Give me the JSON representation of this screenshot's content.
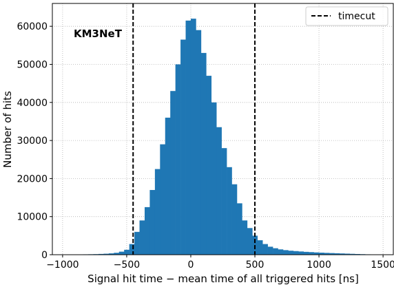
{
  "chart_data": {
    "type": "bar",
    "title": "",
    "xlabel": "Signal hit time − mean time of all triggered hits [ns]",
    "ylabel": "Number of hits",
    "xlim": [
      -1080,
      1580
    ],
    "ylim": [
      0,
      66000
    ],
    "xticks": [
      -1000,
      -500,
      0,
      500,
      1000,
      1500
    ],
    "yticks": [
      0,
      10000,
      20000,
      30000,
      40000,
      50000,
      60000
    ],
    "grid": true,
    "bar_color": "#1f77b4",
    "bin_width": 40,
    "bins": {
      "x": [
        -1000,
        -960,
        -920,
        -880,
        -840,
        -800,
        -760,
        -720,
        -680,
        -640,
        -600,
        -560,
        -520,
        -480,
        -440,
        -400,
        -360,
        -320,
        -280,
        -240,
        -200,
        -160,
        -120,
        -80,
        -40,
        0,
        40,
        80,
        120,
        160,
        200,
        240,
        280,
        320,
        360,
        400,
        440,
        480,
        520,
        560,
        600,
        640,
        680,
        720,
        760,
        800,
        840,
        880,
        920,
        960,
        1000,
        1040,
        1080,
        1120,
        1160,
        1200,
        1240,
        1280,
        1320,
        1360,
        1400,
        1440,
        1480
      ],
      "counts": [
        50,
        60,
        70,
        80,
        100,
        120,
        150,
        200,
        260,
        350,
        500,
        800,
        1300,
        2800,
        6000,
        9000,
        12500,
        17000,
        22500,
        29000,
        36000,
        43000,
        50000,
        56500,
        61500,
        62000,
        59000,
        53000,
        47000,
        40000,
        33500,
        28000,
        23000,
        18500,
        13500,
        9000,
        7000,
        5000,
        3800,
        2800,
        2100,
        1700,
        1400,
        1200,
        1050,
        950,
        850,
        750,
        680,
        600,
        540,
        480,
        430,
        380,
        330,
        280,
        230,
        180,
        140,
        100,
        70,
        40,
        20
      ]
    },
    "vlines": [
      {
        "x": -450,
        "style": "dashed",
        "color": "#000000"
      },
      {
        "x": 500,
        "style": "dashed",
        "color": "#000000"
      }
    ],
    "legend": {
      "position": "top-right",
      "entries": [
        {
          "label": "timecut",
          "style": "dashed"
        }
      ]
    },
    "annotation": "KM3NeT"
  }
}
